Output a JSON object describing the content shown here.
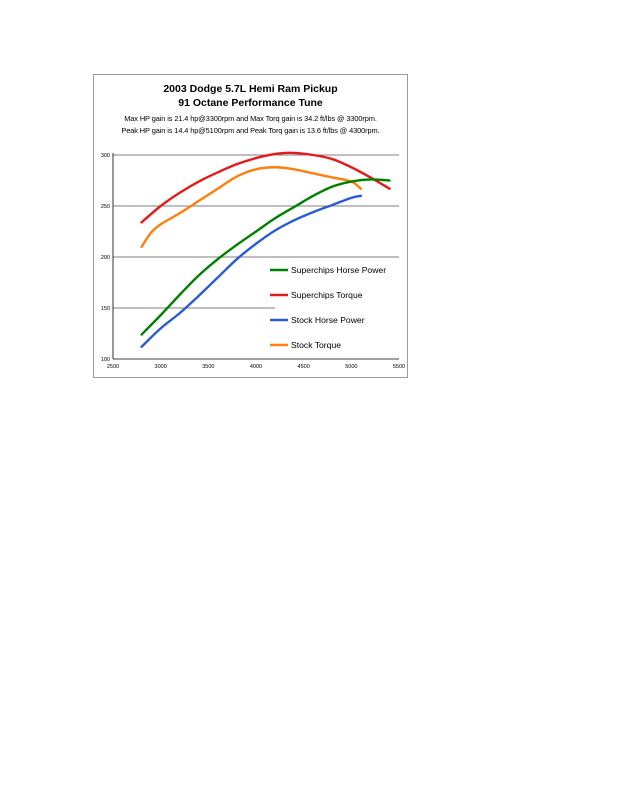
{
  "chart_data": {
    "type": "line",
    "title": "2003 Dodge 5.7L Hemi Ram Pickup",
    "subtitle": "91 Octane Performance Tune",
    "annotations": [
      "Max HP gain is 21.4 hp@3300rpm and Max Torq gain is 34.2 ft/lbs @ 3300rpm.",
      "Peak HP gain is 14.4 hp@5100rpm and Peak Torq gain is 13.6 ft/lbs @ 4300rpm."
    ],
    "xlabel": "",
    "ylabel": "",
    "xlim": [
      2500,
      5500
    ],
    "ylim": [
      100,
      300
    ],
    "x_ticks": [
      "2500",
      "3000",
      "3500",
      "4000",
      "4500",
      "5000",
      "5500"
    ],
    "y_ticks": [
      "100",
      "150",
      "200",
      "250",
      "300"
    ],
    "grid": "horizontal",
    "legend_position": "right",
    "series": [
      {
        "name": "Superchips Horse Power",
        "color": "#008000",
        "x": [
          2800,
          3000,
          3200,
          3400,
          3600,
          3800,
          4000,
          4200,
          4400,
          4600,
          4800,
          5000,
          5200,
          5400
        ],
        "y": [
          124,
          143,
          163,
          182,
          198,
          212,
          225,
          238,
          249,
          260,
          269,
          274,
          276,
          275
        ]
      },
      {
        "name": "Superchips Torque",
        "color": "#e31b1b",
        "x": [
          2800,
          3000,
          3200,
          3400,
          3600,
          3800,
          4000,
          4200,
          4300,
          4400,
          4600,
          4800,
          5000,
          5200,
          5400
        ],
        "y": [
          234,
          250,
          263,
          274,
          283,
          291,
          297,
          301,
          302,
          302,
          300,
          296,
          288,
          278,
          267
        ]
      },
      {
        "name": "Stock Horse Power",
        "color": "#2a5bd7",
        "x": [
          2800,
          3000,
          3200,
          3400,
          3600,
          3800,
          4000,
          4200,
          4400,
          4600,
          4800,
          5000,
          5100
        ],
        "y": [
          112,
          130,
          145,
          162,
          180,
          198,
          213,
          226,
          236,
          244,
          251,
          258,
          260
        ]
      },
      {
        "name": "Stock Torque",
        "color": "#ff7f0e",
        "x": [
          2800,
          2900,
          3000,
          3200,
          3400,
          3600,
          3800,
          4000,
          4200,
          4400,
          4600,
          4800,
          5000,
          5100
        ],
        "y": [
          210,
          224,
          232,
          243,
          255,
          267,
          279,
          286,
          288,
          286,
          282,
          278,
          274,
          267
        ]
      }
    ]
  }
}
